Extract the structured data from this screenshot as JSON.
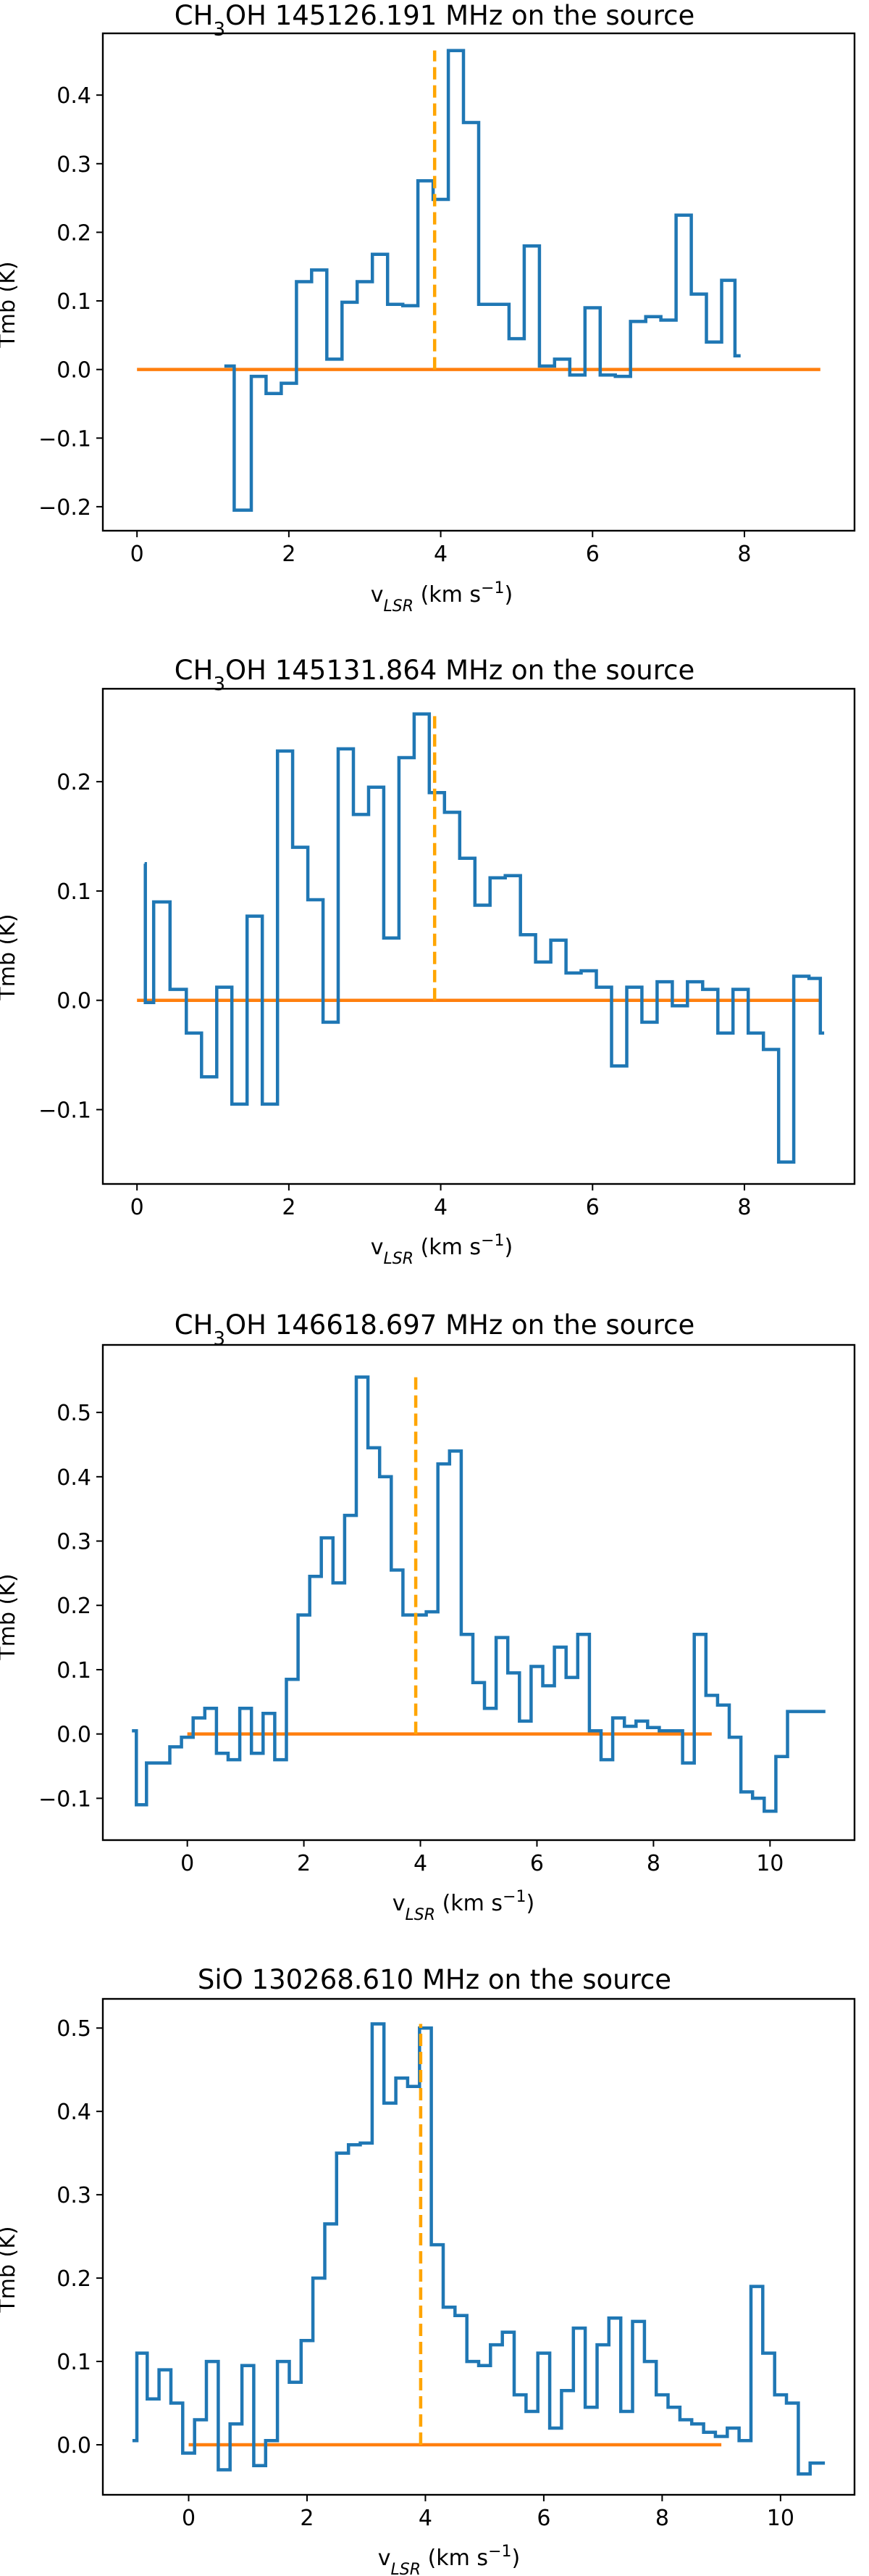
{
  "chart_data": [
    {
      "type": "line",
      "title": "CH3OH 145126.191 MHz on the source",
      "title_species": "CH",
      "title_sub": "3",
      "title_rest": "OH 145126.191 MHz on the source",
      "xlabel_main": "v",
      "xlabel_sub": "LSR",
      "xlabel_unit": " (km s",
      "xlabel_sup": "−1",
      "xlabel_close": ")",
      "ylabel": "Tmb (K)",
      "xlim": [
        -0.45,
        9.45
      ],
      "ylim": [
        -0.235,
        0.49
      ],
      "xticks": [
        0,
        2,
        4,
        6,
        8
      ],
      "xtick_labels": [
        "0",
        "2",
        "4",
        "6",
        "8"
      ],
      "yticks": [
        -0.2,
        -0.1,
        0.0,
        0.1,
        0.2,
        0.3,
        0.4
      ],
      "ytick_labels": [
        "−0.2",
        "−0.1",
        "0.0",
        "0.1",
        "0.2",
        "0.3",
        "0.4"
      ],
      "series": [
        {
          "name": "spectrum",
          "style": "steps",
          "x": [
            1.15,
            1.41,
            1.6,
            1.8,
            2.0,
            2.2,
            2.4,
            2.6,
            2.8,
            3.0,
            3.2,
            3.4,
            3.6,
            3.8,
            4.0,
            4.2,
            4.4,
            4.6,
            4.8,
            5.0,
            5.2,
            5.4,
            5.6,
            5.8,
            6.0,
            6.2,
            6.4,
            6.6,
            6.8,
            7.0,
            7.2,
            7.4,
            7.6,
            7.8,
            7.95
          ],
          "y": [
            0.005,
            -0.205,
            -0.01,
            -0.035,
            -0.02,
            0.128,
            0.145,
            0.015,
            0.098,
            0.128,
            0.168,
            0.095,
            0.093,
            0.275,
            0.248,
            0.465,
            0.36,
            0.095,
            0.095,
            0.045,
            0.18,
            0.005,
            0.015,
            -0.008,
            0.09,
            -0.008,
            -0.01,
            0.07,
            0.077,
            0.072,
            0.225,
            0.11,
            0.04,
            0.13,
            0.02
          ]
        }
      ],
      "baseline": {
        "x": [
          0,
          9
        ],
        "y": 0.0
      },
      "marker_line": {
        "x": 3.92,
        "y": [
          0.0,
          0.465
        ]
      }
    },
    {
      "type": "line",
      "title": "CH3OH 145131.864 MHz on the source",
      "title_species": "CH",
      "title_sub": "3",
      "title_rest": "OH 145131.864 MHz on the source",
      "xlabel_main": "v",
      "xlabel_sub": "LSR",
      "xlabel_unit": " (km s",
      "xlabel_sup": "−1",
      "xlabel_close": ")",
      "ylabel": "Tmb (K)",
      "xlim": [
        -0.45,
        9.45
      ],
      "ylim": [
        -0.168,
        0.285
      ],
      "xticks": [
        0,
        2,
        4,
        6,
        8
      ],
      "xtick_labels": [
        "0",
        "2",
        "4",
        "6",
        "8"
      ],
      "yticks": [
        -0.1,
        0.0,
        0.1,
        0.2
      ],
      "ytick_labels": [
        "−0.1",
        "0.0",
        "0.1",
        "0.2"
      ],
      "series": [
        {
          "name": "spectrum",
          "style": "steps",
          "x": [
            0.1,
            0.12,
            0.32,
            0.55,
            0.75,
            0.95,
            1.15,
            1.35,
            1.55,
            1.75,
            1.95,
            2.15,
            2.35,
            2.55,
            2.75,
            2.95,
            3.15,
            3.35,
            3.55,
            3.75,
            3.95,
            4.15,
            4.35,
            4.55,
            4.75,
            4.95,
            5.15,
            5.35,
            5.55,
            5.75,
            5.95,
            6.15,
            6.35,
            6.55,
            6.75,
            6.95,
            7.15,
            7.35,
            7.55,
            7.75,
            7.95,
            8.15,
            8.35,
            8.55,
            8.75,
            8.95,
            9.05
          ],
          "y": [
            0.125,
            -0.002,
            0.09,
            0.01,
            -0.03,
            -0.07,
            0.012,
            -0.095,
            0.077,
            -0.095,
            0.228,
            0.14,
            0.092,
            -0.02,
            0.23,
            0.17,
            0.195,
            0.057,
            0.222,
            0.262,
            0.19,
            0.172,
            0.13,
            0.087,
            0.112,
            0.114,
            0.06,
            0.035,
            0.055,
            0.025,
            0.027,
            0.012,
            -0.06,
            0.012,
            -0.02,
            0.017,
            -0.005,
            0.017,
            0.01,
            -0.03,
            0.01,
            -0.03,
            -0.045,
            -0.148,
            0.022,
            0.02,
            -0.03
          ]
        }
      ],
      "baseline": {
        "x": [
          0,
          9
        ],
        "y": 0.0
      },
      "marker_line": {
        "x": 3.92,
        "y": [
          0.0,
          0.262
        ]
      }
    },
    {
      "type": "line",
      "title": "CH3OH 146618.697 MHz on the source",
      "title_species": "CH",
      "title_sub": "3",
      "title_rest": "OH 146618.697 MHz on the source",
      "xlabel_main": "v",
      "xlabel_sub": "LSR",
      "xlabel_unit": " (km s",
      "xlabel_sup": "−1",
      "xlabel_close": ")",
      "ylabel": "Tmb (K)",
      "xlim": [
        -1.45,
        11.45
      ],
      "ylim": [
        -0.165,
        0.605
      ],
      "xticks": [
        0,
        2,
        4,
        6,
        8,
        10
      ],
      "xtick_labels": [
        "0",
        "2",
        "4",
        "6",
        "8",
        "10"
      ],
      "yticks": [
        -0.1,
        0.0,
        0.1,
        0.2,
        0.3,
        0.4,
        0.5
      ],
      "ytick_labels": [
        "−0.1",
        "0.0",
        "0.1",
        "0.2",
        "0.3",
        "0.4",
        "0.5"
      ],
      "series": [
        {
          "name": "spectrum",
          "style": "steps",
          "x": [
            -0.95,
            -0.8,
            -0.6,
            -0.4,
            -0.2,
            0.0,
            0.2,
            0.4,
            0.6,
            0.8,
            1.0,
            1.2,
            1.4,
            1.6,
            1.8,
            2.0,
            2.2,
            2.4,
            2.6,
            2.8,
            3.0,
            3.2,
            3.4,
            3.6,
            3.8,
            4.0,
            4.2,
            4.4,
            4.6,
            4.8,
            5.0,
            5.2,
            5.4,
            5.6,
            5.8,
            6.0,
            6.2,
            6.4,
            6.6,
            6.8,
            7.0,
            7.2,
            7.4,
            7.6,
            7.8,
            8.0,
            8.2,
            8.4,
            8.6,
            8.8,
            9.0,
            9.2,
            9.4,
            9.6,
            9.8,
            10.0,
            10.2,
            10.4,
            10.6,
            10.8,
            10.95
          ],
          "y": [
            0.005,
            -0.11,
            -0.045,
            -0.045,
            -0.02,
            -0.005,
            0.025,
            0.04,
            -0.03,
            -0.04,
            0.04,
            -0.03,
            0.032,
            -0.04,
            0.085,
            0.185,
            0.245,
            0.305,
            0.235,
            0.34,
            0.555,
            0.445,
            0.4,
            0.255,
            0.185,
            0.185,
            0.19,
            0.42,
            0.44,
            0.155,
            0.08,
            0.04,
            0.15,
            0.095,
            0.02,
            0.105,
            0.075,
            0.135,
            0.088,
            0.155,
            0.005,
            -0.04,
            0.025,
            0.012,
            0.02,
            0.01,
            0.005,
            0.005,
            -0.045,
            0.155,
            0.06,
            0.045,
            -0.005,
            -0.09,
            -0.1,
            -0.12,
            -0.035,
            0.035,
            0.035,
            0.035,
            0.035
          ]
        }
      ],
      "baseline": {
        "x": [
          0,
          9
        ],
        "y": 0.0
      },
      "marker_line": {
        "x": 3.92,
        "y": [
          0.0,
          0.555
        ]
      }
    },
    {
      "type": "line",
      "title": "SiO 130268.610 MHz on the source",
      "title_species": "SiO 130268.610 MHz on the source",
      "title_sub": "",
      "title_rest": "",
      "xlabel_main": "v",
      "xlabel_sub": "LSR",
      "xlabel_unit": " (km s",
      "xlabel_sup": "−1",
      "xlabel_close": ")",
      "ylabel": "Tmb (K)",
      "xlim": [
        -1.45,
        11.25
      ],
      "ylim": [
        -0.06,
        0.535
      ],
      "xticks": [
        0,
        2,
        4,
        6,
        8,
        10
      ],
      "xtick_labels": [
        "0",
        "2",
        "4",
        "6",
        "8",
        "10"
      ],
      "yticks": [
        0.0,
        0.1,
        0.2,
        0.3,
        0.4,
        0.5
      ],
      "ytick_labels": [
        "0.0",
        "0.1",
        "0.2",
        "0.3",
        "0.4",
        "0.5"
      ],
      "series": [
        {
          "name": "spectrum",
          "style": "steps",
          "x": [
            -0.95,
            -0.8,
            -0.6,
            -0.4,
            -0.2,
            0.0,
            0.2,
            0.4,
            0.6,
            0.8,
            1.0,
            1.2,
            1.4,
            1.6,
            1.8,
            2.0,
            2.2,
            2.4,
            2.6,
            2.8,
            3.0,
            3.2,
            3.4,
            3.6,
            3.8,
            4.0,
            4.2,
            4.4,
            4.6,
            4.8,
            5.0,
            5.2,
            5.4,
            5.6,
            5.8,
            6.0,
            6.2,
            6.4,
            6.6,
            6.8,
            7.0,
            7.2,
            7.4,
            7.6,
            7.8,
            8.0,
            8.2,
            8.4,
            8.6,
            8.8,
            9.0,
            9.2,
            9.4,
            9.6,
            9.8,
            10.0,
            10.2,
            10.4,
            10.6,
            10.75
          ],
          "y": [
            0.005,
            0.11,
            0.055,
            0.09,
            0.05,
            -0.01,
            0.03,
            0.1,
            -0.03,
            0.025,
            0.095,
            -0.025,
            0.005,
            0.1,
            0.075,
            0.125,
            0.2,
            0.265,
            0.35,
            0.36,
            0.362,
            0.505,
            0.41,
            0.44,
            0.43,
            0.5,
            0.24,
            0.165,
            0.155,
            0.1,
            0.095,
            0.12,
            0.135,
            0.06,
            0.04,
            0.11,
            0.02,
            0.065,
            0.14,
            0.045,
            0.12,
            0.152,
            0.04,
            0.148,
            0.1,
            0.06,
            0.045,
            0.03,
            0.025,
            0.015,
            0.01,
            0.02,
            0.005,
            0.19,
            0.11,
            0.06,
            0.05,
            -0.035,
            -0.022,
            -0.022
          ]
        }
      ],
      "baseline": {
        "x": [
          0,
          9
        ],
        "y": 0.0
      },
      "marker_line": {
        "x": 3.92,
        "y": [
          0.0,
          0.505
        ]
      }
    }
  ]
}
